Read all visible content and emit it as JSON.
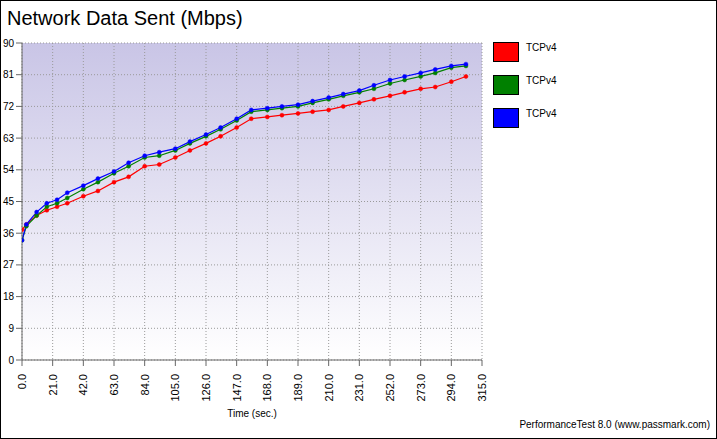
{
  "chart_data": {
    "type": "line",
    "title": "Network Data Sent (Mbps)",
    "x_label": "Time (sec.)",
    "annotations": [
      "PerformanceTest 8.0 (www.passmark.com)"
    ],
    "x": [
      0,
      3,
      10,
      17,
      24,
      31,
      42,
      52,
      63,
      73,
      84,
      94,
      105,
      115,
      126,
      136,
      147,
      157,
      168,
      178,
      189,
      199,
      210,
      220,
      231,
      241,
      252,
      262,
      273,
      283,
      294,
      304
    ],
    "series": [
      {
        "name": "TCPv4",
        "color": "#ff0000",
        "marker": "circle",
        "values": [
          37,
          38.5,
          41,
          42.5,
          43.5,
          44.5,
          46.5,
          48,
          50.5,
          52,
          55,
          55.5,
          57.5,
          59.5,
          61.5,
          63.5,
          66,
          68.5,
          69,
          69.5,
          70,
          70.5,
          71,
          72,
          73,
          74,
          75,
          76,
          77,
          77.5,
          79,
          80.5
        ]
      },
      {
        "name": "TCPv4",
        "color": "#008000",
        "marker": "circle",
        "values": [
          34,
          38,
          41,
          43.5,
          44.5,
          46,
          48.5,
          50.5,
          53,
          55,
          57.5,
          58,
          59.5,
          61.5,
          63.5,
          65.5,
          68,
          70.5,
          71,
          71.5,
          72,
          73,
          74,
          75,
          76,
          77,
          78.5,
          79.5,
          80.5,
          81.5,
          83,
          83.5
        ]
      },
      {
        "name": "TCPv4",
        "color": "#0000ff",
        "marker": "circle",
        "values": [
          34,
          38.5,
          42,
          44.5,
          45.5,
          47.5,
          49.5,
          51.5,
          53.5,
          56,
          58,
          59,
          60,
          62,
          64,
          66,
          68.5,
          71,
          71.5,
          72,
          72.5,
          73.5,
          74.5,
          75.5,
          76.5,
          78,
          79.5,
          80.5,
          81.5,
          82.5,
          83.5,
          84
        ]
      }
    ],
    "xlim": [
      0,
      315
    ],
    "xticks": [
      {
        "value": 0,
        "label": "0.0"
      },
      {
        "value": 21,
        "label": "21.0"
      },
      {
        "value": 42,
        "label": "42.0"
      },
      {
        "value": 63,
        "label": "63.0"
      },
      {
        "value": 84,
        "label": "84.0"
      },
      {
        "value": 105,
        "label": "105.0"
      },
      {
        "value": 126,
        "label": "126.0"
      },
      {
        "value": 147,
        "label": "147.0"
      },
      {
        "value": 168,
        "label": "168.0"
      },
      {
        "value": 189,
        "label": "189.0"
      },
      {
        "value": 210,
        "label": "210.0"
      },
      {
        "value": 231,
        "label": "231.0"
      },
      {
        "value": 252,
        "label": "252.0"
      },
      {
        "value": 273,
        "label": "273.0"
      },
      {
        "value": 294,
        "label": "294.0"
      },
      {
        "value": 315,
        "label": "315.0"
      }
    ],
    "ylim": [
      0,
      90
    ],
    "yticks": [
      0,
      9,
      18,
      27,
      36,
      45,
      54,
      63,
      72,
      81,
      90
    ],
    "grid": true,
    "legend": "right"
  }
}
